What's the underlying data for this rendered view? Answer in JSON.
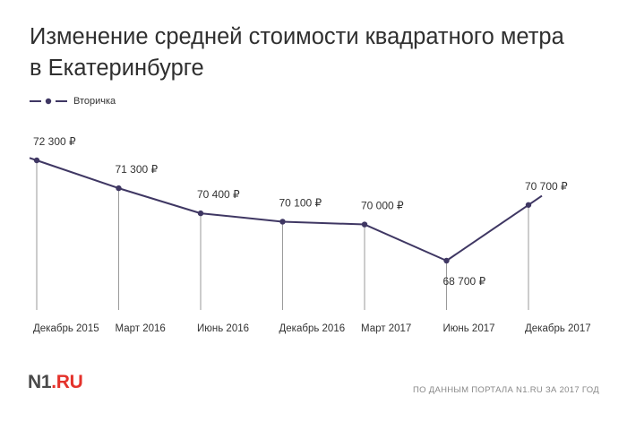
{
  "header": {
    "title_line1": "Изменение средней стоимости квадратного метра",
    "title_line2": "в Екатеринбурге"
  },
  "legend": {
    "label": "Вторичка"
  },
  "chart_data": {
    "type": "line",
    "title": "Изменение средней стоимости квадратного метра в Екатеринбурге",
    "xlabel": "",
    "ylabel": "",
    "categories": [
      "Декабрь 2015",
      "Март 2016",
      "Июнь 2016",
      "Декабрь 2016",
      "Март 2017",
      "Июнь 2017",
      "Декабрь 2017"
    ],
    "series": [
      {
        "name": "Вторичка",
        "values": [
          72300,
          71300,
          70400,
          70100,
          70000,
          68700,
          70700
        ],
        "labels": [
          "72 300 ₽",
          "71 300 ₽",
          "70 400 ₽",
          "70 100 ₽",
          "70 000 ₽",
          "68 700 ₽",
          "70 700 ₽"
        ]
      }
    ],
    "ylim": [
      68700,
      72300
    ],
    "grid": false,
    "legend_position": "top-left",
    "colors": {
      "line": "#3f3763",
      "marker": "#3f3763",
      "drop_line": "#9a9a9a"
    }
  },
  "footer": {
    "logo_main": "N1",
    "logo_suffix": ".RU",
    "source": "ПО ДАННЫМ ПОРТАЛА N1.RU ЗА 2017 ГОД"
  }
}
